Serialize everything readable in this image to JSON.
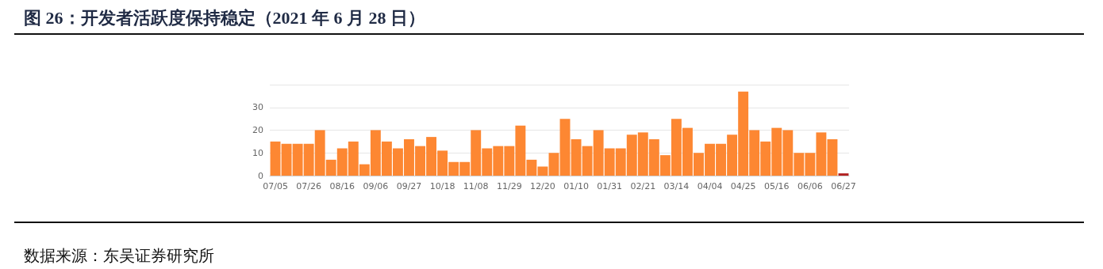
{
  "chart_data": {
    "type": "bar",
    "title": "图 26：开发者活跃度保持稳定（2021 年 6 月 28 日）",
    "categories": [
      "07/05",
      null,
      null,
      "07/26",
      null,
      null,
      "08/16",
      null,
      null,
      "09/06",
      null,
      null,
      "09/27",
      null,
      null,
      "10/18",
      null,
      null,
      "11/08",
      null,
      null,
      "11/29",
      null,
      null,
      "12/20",
      null,
      null,
      "01/10",
      null,
      null,
      "01/31",
      null,
      null,
      "02/21",
      null,
      null,
      "03/14",
      null,
      null,
      "04/04",
      null,
      null,
      "04/25",
      null,
      null,
      "05/16",
      null,
      null,
      "06/06",
      null,
      null,
      "06/27"
    ],
    "values": [
      15,
      14,
      14,
      14,
      20,
      7,
      12,
      15,
      5,
      20,
      15,
      12,
      16,
      13,
      17,
      11,
      6,
      6,
      20,
      12,
      13,
      13,
      22,
      7,
      4,
      10,
      25,
      16,
      13,
      20,
      12,
      12,
      18,
      19,
      16,
      9,
      25,
      21,
      10,
      14,
      14,
      18,
      37,
      20,
      15,
      21,
      20,
      10,
      10,
      19,
      16,
      1
    ],
    "colors": [
      "#fd8732",
      "#fd8732",
      "#fd8732",
      "#fd8732",
      "#fd8732",
      "#fd8732",
      "#fd8732",
      "#fd8732",
      "#fd8732",
      "#fd8732",
      "#fd8732",
      "#fd8732",
      "#fd8732",
      "#fd8732",
      "#fd8732",
      "#fd8732",
      "#fd8732",
      "#fd8732",
      "#fd8732",
      "#fd8732",
      "#fd8732",
      "#fd8732",
      "#fd8732",
      "#fd8732",
      "#fd8732",
      "#fd8732",
      "#fd8732",
      "#fd8732",
      "#fd8732",
      "#fd8732",
      "#fd8732",
      "#fd8732",
      "#fd8732",
      "#fd8732",
      "#fd8732",
      "#fd8732",
      "#fd8732",
      "#fd8732",
      "#fd8732",
      "#fd8732",
      "#fd8732",
      "#fd8732",
      "#fd8732",
      "#fd8732",
      "#fd8732",
      "#fd8732",
      "#fd8732",
      "#fd8732",
      "#fd8732",
      "#fd8732",
      "#fd8732",
      "#b22222"
    ],
    "ylim": [
      0,
      40
    ],
    "yticks": [
      0,
      10,
      20,
      30,
      {
        "value": 40,
        "label": null
      }
    ],
    "grid": "y",
    "annotations": [
      "数据来源：东吴证券研究所"
    ]
  }
}
